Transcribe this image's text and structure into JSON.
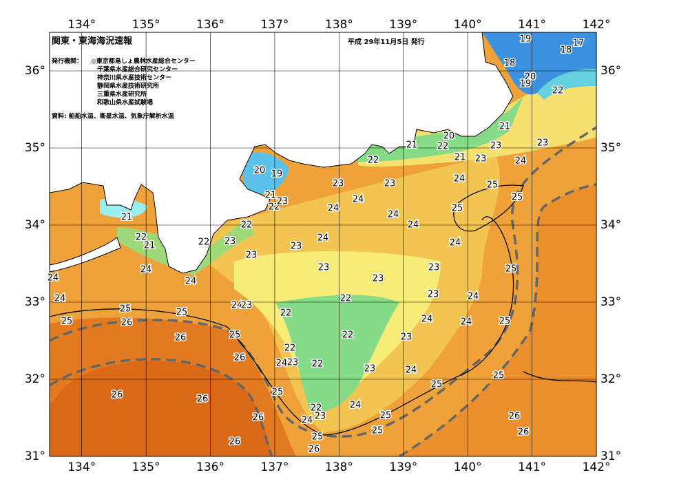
{
  "header": {
    "title": "関東・東海海況速報",
    "issued": "平成 29年11月5日 発行",
    "publisher_label": "発行機関：",
    "agencies": [
      "◎東京都島しょ農林水産総合センター",
      "千葉県水産総合研究センター",
      "神奈川県水産技術センター",
      "静岡県水産技術研究所",
      "三重県水産研究所",
      "和歌山県水産試験場"
    ],
    "source": "資料: 船舶水温、衛星水温、気象庁解析水温"
  },
  "map": {
    "xlim": [
      133.5,
      142
    ],
    "ylim": [
      31,
      36.5
    ],
    "lon_ticks": [
      {
        "value": 134,
        "label": "134°"
      },
      {
        "value": 135,
        "label": "135°"
      },
      {
        "value": 136,
        "label": "136°"
      },
      {
        "value": 137,
        "label": "137°"
      },
      {
        "value": 138,
        "label": "138°"
      },
      {
        "value": 139,
        "label": "139°"
      },
      {
        "value": 140,
        "label": "140°"
      },
      {
        "value": 141,
        "label": "141°"
      },
      {
        "value": 142,
        "label": "142°"
      }
    ],
    "lat_ticks": [
      {
        "value": 31,
        "label": "31°"
      },
      {
        "value": 32,
        "label": "32°"
      },
      {
        "value": 33,
        "label": "33°"
      },
      {
        "value": 34,
        "label": "34°"
      },
      {
        "value": 35,
        "label": "35°"
      },
      {
        "value": 36,
        "label": "36°"
      }
    ],
    "grid": true,
    "contour_labels": [
      "19",
      "17",
      "18",
      "18",
      "20",
      "19",
      "22",
      "21",
      "20",
      "22",
      "21",
      "23",
      "23",
      "21",
      "23",
      "24",
      "22",
      "20",
      "19",
      "23",
      "23",
      "24",
      "25",
      "25",
      "21",
      "22",
      "23",
      "24",
      "24",
      "21",
      "24",
      "25",
      "24",
      "22",
      "22",
      "21",
      "22",
      "23",
      "24",
      "23",
      "24",
      "23",
      "24",
      "25",
      "24",
      "24",
      "23",
      "23",
      "23",
      "24",
      "24",
      "23",
      "23",
      "24",
      "22",
      "25",
      "25",
      "25",
      "26",
      "22",
      "24",
      "24",
      "25",
      "25",
      "23",
      "26",
      "22",
      "22",
      "26",
      "24",
      "23",
      "22",
      "23",
      "24",
      "25",
      "25",
      "26",
      "26",
      "25",
      "24",
      "22",
      "23",
      "24",
      "25",
      "26",
      "26",
      "25",
      "26",
      "25",
      "26",
      "26"
    ]
  }
}
